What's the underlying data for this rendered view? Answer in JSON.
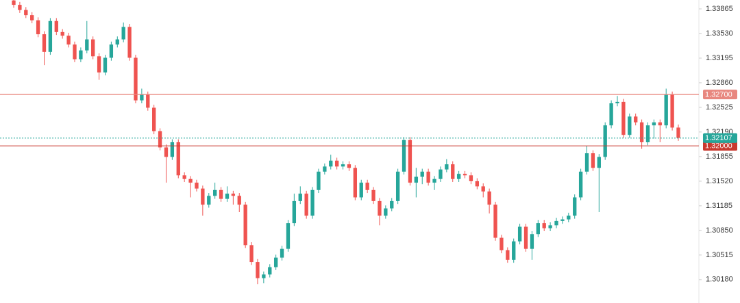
{
  "chart_data": {
    "type": "candlestick",
    "ylim": [
      1.29862,
      1.33986
    ],
    "yticks": [
      {
        "value": 1.33865,
        "label": "1.33865"
      },
      {
        "value": 1.3353,
        "label": "1.33530"
      },
      {
        "value": 1.33195,
        "label": "1.33195"
      },
      {
        "value": 1.3286,
        "label": "1.32860"
      },
      {
        "value": 1.32525,
        "label": "1.32525"
      },
      {
        "value": 1.3219,
        "label": "1.32190"
      },
      {
        "value": 1.31855,
        "label": "1.31855"
      },
      {
        "value": 1.3152,
        "label": "1.31520"
      },
      {
        "value": 1.31185,
        "label": "1.31185"
      },
      {
        "value": 1.3085,
        "label": "1.30850"
      },
      {
        "value": 1.30515,
        "label": "1.30515"
      },
      {
        "value": 1.3018,
        "label": "1.30180"
      }
    ],
    "up_color": "#26a69a",
    "down_color": "#ef5350",
    "levels": [
      {
        "value": 1.327,
        "label": "1.32700",
        "color": "#e8877f"
      },
      {
        "value": 1.32,
        "label": "1.32000",
        "color": "#c9392f"
      }
    ],
    "current_price": {
      "value": 1.32107,
      "label": "1.32107",
      "color": "#26a69a"
    },
    "open": [
      1.3398,
      1.3392,
      1.3385,
      1.3378,
      1.3371,
      1.3352,
      1.3328,
      1.337,
      1.3355,
      1.335,
      1.3338,
      1.3318,
      1.333,
      1.3345,
      1.3322,
      1.33,
      1.332,
      1.3338,
      1.3345,
      1.3362,
      1.332,
      1.3262,
      1.327,
      1.3252,
      1.322,
      1.3198,
      1.3185,
      1.3205,
      1.316,
      1.3155,
      1.315,
      1.3142,
      1.312,
      1.3132,
      1.314,
      1.3128,
      1.3135,
      1.3132,
      1.312,
      1.3065,
      1.3042,
      1.302,
      1.3025,
      1.3035,
      1.3048,
      1.306,
      1.3095,
      1.3125,
      1.3135,
      1.3105,
      1.314,
      1.3165,
      1.3172,
      1.318,
      1.3172,
      1.3175,
      1.317,
      1.313,
      1.315,
      1.314,
      1.3125,
      1.3105,
      1.3115,
      1.3125,
      1.3165,
      1.3208,
      1.315,
      1.3158,
      1.3165,
      1.315,
      1.3155,
      1.3168,
      1.3175,
      1.3155,
      1.3162,
      1.316,
      1.3152,
      1.3145,
      1.3138,
      1.312,
      1.3075,
      1.3058,
      1.3045,
      1.307,
      1.309,
      1.306,
      1.308,
      1.3095,
      1.3088,
      1.3092,
      1.3098,
      1.31,
      1.3105,
      1.313,
      1.3165,
      1.319,
      1.317,
      1.3185,
      1.3228,
      1.3258,
      1.326,
      1.3215,
      1.324,
      1.3232,
      1.3205,
      1.3228,
      1.3232,
      1.3228,
      1.327,
      1.3225
    ],
    "high": [
      1.3402,
      1.3396,
      1.3389,
      1.3382,
      1.3375,
      1.3356,
      1.3374,
      1.3374,
      1.3359,
      1.3354,
      1.3342,
      1.3334,
      1.337,
      1.3349,
      1.3326,
      1.3324,
      1.3342,
      1.3349,
      1.3368,
      1.3366,
      1.3324,
      1.3278,
      1.3274,
      1.3256,
      1.3224,
      1.3202,
      1.3209,
      1.3209,
      1.3164,
      1.3159,
      1.3154,
      1.3146,
      1.3136,
      1.315,
      1.3144,
      1.3145,
      1.3139,
      1.3136,
      1.3124,
      1.3069,
      1.3046,
      1.3029,
      1.3039,
      1.3052,
      1.3064,
      1.3099,
      1.3135,
      1.3145,
      1.3139,
      1.3144,
      1.3169,
      1.3176,
      1.3188,
      1.3184,
      1.3179,
      1.3179,
      1.3174,
      1.3154,
      1.3154,
      1.3144,
      1.3129,
      1.3119,
      1.3129,
      1.3169,
      1.3212,
      1.3212,
      1.317,
      1.3169,
      1.3169,
      1.3159,
      1.3172,
      1.3182,
      1.3179,
      1.3166,
      1.3166,
      1.3164,
      1.3156,
      1.3149,
      1.3142,
      1.3124,
      1.3079,
      1.3062,
      1.3074,
      1.3094,
      1.3094,
      1.3084,
      1.3099,
      1.3099,
      1.3096,
      1.3102,
      1.3104,
      1.3109,
      1.3134,
      1.3169,
      1.32,
      1.3194,
      1.3189,
      1.3232,
      1.3262,
      1.3268,
      1.3264,
      1.3244,
      1.3244,
      1.3236,
      1.3232,
      1.3236,
      1.3236,
      1.3278,
      1.3274,
      1.3229
    ],
    "low": [
      1.3388,
      1.3381,
      1.3374,
      1.3367,
      1.3348,
      1.331,
      1.3324,
      1.3351,
      1.3346,
      1.3334,
      1.3314,
      1.3314,
      1.3326,
      1.3318,
      1.329,
      1.3296,
      1.3316,
      1.3334,
      1.3341,
      1.3316,
      1.3258,
      1.3258,
      1.3248,
      1.3216,
      1.3194,
      1.315,
      1.3181,
      1.3156,
      1.3151,
      1.313,
      1.3138,
      1.3105,
      1.3116,
      1.3128,
      1.3124,
      1.3124,
      1.312,
      1.311,
      1.3061,
      1.3038,
      1.3012,
      1.3013,
      1.3021,
      1.3031,
      1.3044,
      1.3056,
      1.3091,
      1.3121,
      1.3101,
      1.3101,
      1.3136,
      1.3161,
      1.3168,
      1.3168,
      1.3168,
      1.3166,
      1.3126,
      1.3126,
      1.3136,
      1.3121,
      1.3092,
      1.3101,
      1.3111,
      1.3121,
      1.3161,
      1.3146,
      1.313,
      1.3148,
      1.3146,
      1.314,
      1.3151,
      1.3164,
      1.3151,
      1.3151,
      1.3156,
      1.3148,
      1.3141,
      1.313,
      1.3108,
      1.3071,
      1.3054,
      1.3041,
      1.3041,
      1.3066,
      1.3056,
      1.3045,
      1.3076,
      1.3084,
      1.3084,
      1.3088,
      1.3094,
      1.3096,
      1.3101,
      1.3126,
      1.3161,
      1.3166,
      1.311,
      1.3181,
      1.3224,
      1.3254,
      1.3211,
      1.3211,
      1.3228,
      1.3196,
      1.3201,
      1.321,
      1.3205,
      1.3224,
      1.3221,
      1.3207
    ],
    "close": [
      1.3392,
      1.3385,
      1.3378,
      1.3371,
      1.3352,
      1.3328,
      1.337,
      1.3355,
      1.335,
      1.3338,
      1.3318,
      1.333,
      1.3345,
      1.3322,
      1.33,
      1.332,
      1.3338,
      1.3345,
      1.3362,
      1.332,
      1.3262,
      1.327,
      1.3252,
      1.322,
      1.3198,
      1.3185,
      1.3205,
      1.316,
      1.3155,
      1.315,
      1.3142,
      1.312,
      1.3132,
      1.314,
      1.3128,
      1.3135,
      1.3132,
      1.312,
      1.3065,
      1.3042,
      1.302,
      1.3025,
      1.3035,
      1.3048,
      1.306,
      1.3095,
      1.3125,
      1.3135,
      1.3105,
      1.314,
      1.3165,
      1.3172,
      1.318,
      1.3172,
      1.3175,
      1.317,
      1.313,
      1.315,
      1.314,
      1.3125,
      1.3105,
      1.3115,
      1.3125,
      1.3165,
      1.3208,
      1.315,
      1.3158,
      1.3165,
      1.315,
      1.3155,
      1.3168,
      1.3175,
      1.3155,
      1.3162,
      1.316,
      1.3152,
      1.3145,
      1.3138,
      1.312,
      1.3075,
      1.3058,
      1.3045,
      1.307,
      1.309,
      1.306,
      1.308,
      1.3095,
      1.3088,
      1.3092,
      1.3098,
      1.31,
      1.3105,
      1.313,
      1.3165,
      1.319,
      1.317,
      1.3185,
      1.3228,
      1.3258,
      1.326,
      1.3215,
      1.324,
      1.3232,
      1.3205,
      1.3228,
      1.3232,
      1.3228,
      1.327,
      1.3225,
      1.3211
    ]
  }
}
